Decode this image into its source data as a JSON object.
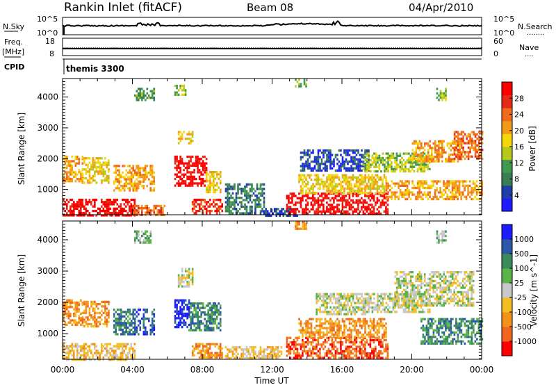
{
  "header": {
    "station": "Rankin Inlet (fitACF)",
    "beam": "Beam 08",
    "date": "04/Apr/2010"
  },
  "nsky_panel": {
    "left_label": "N.Sky",
    "right_label": "N.Search",
    "right_dots": "........",
    "left_ticks": [
      "10^5",
      "10^0"
    ],
    "right_ticks": [
      "10^5",
      "10^0"
    ]
  },
  "freq_panel": {
    "left_label": "Freq.",
    "unit_label": "[MHz]",
    "right_label": "Nave",
    "right_dots": "....",
    "left_ticks": [
      "18",
      "8"
    ],
    "right_ticks": [
      "60",
      "0"
    ]
  },
  "cpid_panel": {
    "label": "CPID",
    "program": "themis 3300"
  },
  "colors": {
    "power": [
      "#1c1cff",
      "#1e3fa8",
      "#3a7d52",
      "#3f9a4e",
      "#b8c81a",
      "#f5d60a",
      "#f39a1a",
      "#ef6a1b",
      "#e32b18",
      "#ff0000"
    ],
    "velocity": [
      "#ff0000",
      "#f06520",
      "#f3921a",
      "#f4be22",
      "#c8c8c8",
      "#5ab44a",
      "#3a8a5a",
      "#2b59a8",
      "#1c1cff"
    ],
    "ground_scatter": "#c8c8c8"
  },
  "chart_data": [
    {
      "type": "heatmap",
      "title": "Power",
      "ylabel": "Slant Range [km]",
      "colorbar_label": "Power [dB]",
      "colorbar_ticks": [
        "28",
        "24",
        "20",
        "16",
        "12",
        "8",
        "4"
      ],
      "ylim": [
        180,
        4600
      ],
      "yticks": [
        "1000",
        "2000",
        "3000",
        "4000"
      ],
      "xlim": [
        0,
        24
      ],
      "scatter_regions": [
        {
          "t0": 0.0,
          "t1": 4.1,
          "r0": 180,
          "r1": 700,
          "level": 9
        },
        {
          "t0": 0.0,
          "t1": 1.1,
          "r0": 1300,
          "r1": 2100,
          "level": 6
        },
        {
          "t0": 1.1,
          "t1": 2.6,
          "r0": 1250,
          "r1": 2050,
          "level": 5
        },
        {
          "t0": 2.9,
          "t1": 5.2,
          "r0": 1000,
          "r1": 1800,
          "level": 6
        },
        {
          "t0": 4.0,
          "t1": 5.8,
          "r0": 180,
          "r1": 500,
          "level": 7
        },
        {
          "t0": 6.4,
          "t1": 8.2,
          "r0": 1100,
          "r1": 2100,
          "level": 9
        },
        {
          "t0": 8.2,
          "t1": 9.0,
          "r0": 900,
          "r1": 1600,
          "level": 5
        },
        {
          "t0": 7.4,
          "t1": 9.1,
          "r0": 250,
          "r1": 700,
          "level": 8
        },
        {
          "t0": 6.6,
          "t1": 7.4,
          "r0": 2500,
          "r1": 2900,
          "level": 5
        },
        {
          "t0": 9.3,
          "t1": 11.5,
          "r0": 200,
          "r1": 1200,
          "level": 2
        },
        {
          "t0": 11.5,
          "t1": 13.4,
          "r0": 180,
          "r1": 400,
          "level": 1
        },
        {
          "t0": 12.8,
          "t1": 18.6,
          "r0": 250,
          "r1": 900,
          "level": 9
        },
        {
          "t0": 13.5,
          "t1": 18.5,
          "r0": 900,
          "r1": 1500,
          "level": 5
        },
        {
          "t0": 13.6,
          "t1": 17.5,
          "r0": 1600,
          "r1": 2300,
          "level": 1
        },
        {
          "t0": 17.2,
          "t1": 21.0,
          "r0": 1600,
          "r1": 2200,
          "level": 4
        },
        {
          "t0": 18.5,
          "t1": 24.0,
          "r0": 700,
          "r1": 1300,
          "level": 6
        },
        {
          "t0": 20.0,
          "t1": 22.8,
          "r0": 1900,
          "r1": 2600,
          "level": 6
        },
        {
          "t0": 22.4,
          "t1": 24.0,
          "r0": 2000,
          "r1": 2900,
          "level": 7
        },
        {
          "t0": 4.1,
          "t1": 5.2,
          "r0": 3900,
          "r1": 4300,
          "level": 3
        },
        {
          "t0": 6.4,
          "t1": 7.0,
          "r0": 4100,
          "r1": 4400,
          "level": 4
        },
        {
          "t0": 13.3,
          "t1": 13.9,
          "r0": 4350,
          "r1": 4600,
          "level": 3
        },
        {
          "t0": 21.4,
          "t1": 21.9,
          "r0": 3900,
          "r1": 4300,
          "level": 4
        }
      ]
    },
    {
      "type": "heatmap",
      "title": "Velocity",
      "ylabel": "Slant Range [km]",
      "colorbar_label": "Velocity [m s^-1]",
      "colorbar_ticks": [
        "1000",
        "500",
        "100",
        "25",
        "-25",
        "-100",
        "-500",
        "-1000"
      ],
      "ylim": [
        180,
        4600
      ],
      "yticks": [
        "1000",
        "2000",
        "3000",
        "4000"
      ],
      "xlim": [
        0,
        24
      ],
      "xticks": [
        "00:00",
        "04:00",
        "08:00",
        "12:00",
        "16:00",
        "20:00",
        "00:00"
      ],
      "xlabel": "Time UT",
      "scatter_regions": [
        {
          "t0": 0.0,
          "t1": 1.1,
          "r0": 1300,
          "r1": 2100,
          "level": 2
        },
        {
          "t0": 1.1,
          "t1": 2.6,
          "r0": 1250,
          "r1": 2050,
          "level": 2
        },
        {
          "t0": 2.9,
          "t1": 4.0,
          "r0": 1000,
          "r1": 1800,
          "level": 6
        },
        {
          "t0": 4.0,
          "t1": 5.2,
          "r0": 1000,
          "r1": 1800,
          "level": 7
        },
        {
          "t0": 0.0,
          "t1": 4.1,
          "r0": 180,
          "r1": 700,
          "level": 3
        },
        {
          "t0": 6.4,
          "t1": 7.2,
          "r0": 1200,
          "r1": 2100,
          "level": 8
        },
        {
          "t0": 7.2,
          "t1": 9.0,
          "r0": 1100,
          "r1": 2000,
          "level": 6
        },
        {
          "t0": 7.4,
          "t1": 9.1,
          "r0": 250,
          "r1": 700,
          "level": 2
        },
        {
          "t0": 6.6,
          "t1": 7.4,
          "r0": 2500,
          "r1": 2900,
          "level": 4
        },
        {
          "t0": 9.3,
          "t1": 12.5,
          "r0": 200,
          "r1": 600,
          "level": 3
        },
        {
          "t0": 12.8,
          "t1": 18.6,
          "r0": 250,
          "r1": 900,
          "level": 1
        },
        {
          "t0": 13.5,
          "t1": 18.5,
          "r0": 900,
          "r1": 1500,
          "level": 2
        },
        {
          "t0": 14.5,
          "t1": 17.5,
          "r0": 1600,
          "r1": 2300,
          "level": 4
        },
        {
          "t0": 17.2,
          "t1": 21.0,
          "r0": 1700,
          "r1": 2300,
          "level": 4
        },
        {
          "t0": 19.0,
          "t1": 23.5,
          "r0": 1900,
          "r1": 3000,
          "level": 4
        },
        {
          "t0": 20.5,
          "t1": 24.0,
          "r0": 700,
          "r1": 1500,
          "level": 6
        },
        {
          "t0": 6.8,
          "t1": 7.4,
          "r0": 2800,
          "r1": 3100,
          "level": 4
        },
        {
          "t0": 4.1,
          "t1": 5.0,
          "r0": 3900,
          "r1": 4300,
          "level": 5
        },
        {
          "t0": 13.3,
          "t1": 13.9,
          "r0": 4350,
          "r1": 4600,
          "level": 2
        },
        {
          "t0": 21.4,
          "t1": 21.9,
          "r0": 3900,
          "r1": 4300,
          "level": 5
        }
      ]
    }
  ]
}
